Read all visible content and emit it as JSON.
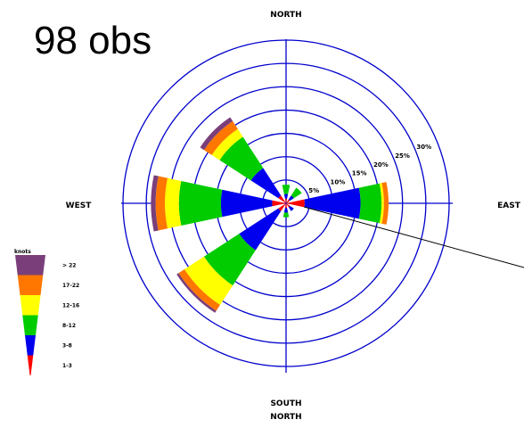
{
  "chart_data": {
    "type": "windrose",
    "title": "98 obs",
    "directions": {
      "north": "NORTH",
      "south": "SOUTH",
      "east": "EAST",
      "west": "WEST",
      "bottom_extra": "NORTH"
    },
    "rings": {
      "max_percent": 35,
      "step_percent": 5,
      "labels": [
        {
          "value": 5,
          "text": "5%"
        },
        {
          "value": 10,
          "text": "10%"
        },
        {
          "value": 15,
          "text": "15%"
        },
        {
          "value": 20,
          "text": "20%"
        },
        {
          "value": 25,
          "text": "25%"
        },
        {
          "value": 30,
          "text": "30%"
        }
      ]
    },
    "legend": {
      "title": "knots",
      "classes": [
        {
          "label": "> 22",
          "color": "#7a3f7a"
        },
        {
          "label": "17-22",
          "color": "#ff7700"
        },
        {
          "label": "12-16",
          "color": "#ffff00"
        },
        {
          "label": "8-12",
          "color": "#00cc00"
        },
        {
          "label": "3-8",
          "color": "#0000ee"
        },
        {
          "label": "1-3",
          "color": "#ff0000"
        }
      ]
    },
    "class_colors": [
      "#ff0000",
      "#0000ee",
      "#00cc00",
      "#ffff00",
      "#ff7700",
      "#7a3f7a"
    ],
    "petals": [
      {
        "direction_deg": 0,
        "cumulative_percent": [
          1,
          2,
          4
        ]
      },
      {
        "direction_deg": 45,
        "cumulative_percent": [
          1,
          2,
          4
        ]
      },
      {
        "direction_deg": 90,
        "cumulative_percent": [
          4,
          16,
          20.5,
          21,
          22
        ]
      },
      {
        "direction_deg": 135,
        "cumulative_percent": [
          1,
          2
        ]
      },
      {
        "direction_deg": 180,
        "cumulative_percent": [
          1,
          2,
          3
        ]
      },
      {
        "direction_deg": 225,
        "cumulative_percent": [
          2,
          12,
          21,
          26,
          27.5,
          28
        ]
      },
      {
        "direction_deg": 270,
        "cumulative_percent": [
          3,
          14,
          23,
          26,
          28,
          29
        ]
      },
      {
        "direction_deg": 315,
        "cumulative_percent": [
          2,
          9,
          17,
          19,
          21,
          22
        ]
      }
    ],
    "line_segment": {
      "from_percent": [
        0,
        0
      ],
      "to_data": [
        588,
        300
      ]
    }
  }
}
